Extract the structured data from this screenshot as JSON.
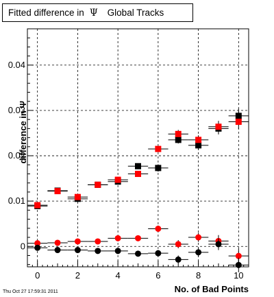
{
  "title": {
    "prefix": "Fitted difference in",
    "symbol": "Ψ",
    "suffix": "Global Tracks"
  },
  "timestamp": "Thu Oct 27 17:59:31 2011",
  "colors": {
    "black_series": "#000000",
    "red_series": "#ff0000",
    "grid": "#000000"
  },
  "chart_data": {
    "type": "scatter",
    "title": "Fitted difference in Ψ Global Tracks",
    "xlabel": "No. of Bad Points",
    "ylabel": "difference in Ψ",
    "xlim": [
      -0.5,
      10.5
    ],
    "ylim": [
      -0.0045,
      0.048
    ],
    "x_ticks": [
      0,
      2,
      4,
      6,
      8,
      10
    ],
    "x_tick_labels": [
      "0",
      "2",
      "4",
      "6",
      "8",
      "10"
    ],
    "y_ticks": [
      0,
      0.01,
      0.02,
      0.03,
      0.04
    ],
    "y_tick_labels": [
      "0",
      "0.01",
      "0.02",
      "0.03",
      "0.04"
    ],
    "grid": true,
    "x_error": 0.5,
    "series": [
      {
        "marker": "square",
        "color": "#000000",
        "x": [
          0,
          1,
          2,
          3,
          4,
          5,
          6,
          7,
          8,
          9,
          10
        ],
        "y": [
          0.0089,
          0.0123,
          0.0105,
          0.0136,
          0.0143,
          0.0177,
          0.0173,
          0.0235,
          0.0223,
          0.026,
          0.0288
        ],
        "yerr": [
          0.0003,
          0.0003,
          0.0004,
          0.0004,
          0.0005,
          0.0006,
          0.0008,
          0.0008,
          0.001,
          0.0013,
          0.0016
        ]
      },
      {
        "marker": "square",
        "color": "#ff0000",
        "x": [
          0,
          1,
          2,
          3,
          4,
          5,
          6,
          7,
          8,
          9,
          10
        ],
        "y": [
          0.0091,
          0.0122,
          0.0109,
          0.0136,
          0.0147,
          0.016,
          0.0215,
          0.0248,
          0.0235,
          0.0264,
          0.0275
        ],
        "yerr": [
          0.0003,
          0.0003,
          0.0004,
          0.0004,
          0.0005,
          0.0006,
          0.0007,
          0.0009,
          0.001,
          0.0013,
          0.0016
        ]
      },
      {
        "marker": "circle",
        "color": "#ff0000",
        "x": [
          0,
          1,
          2,
          3,
          4,
          5,
          6,
          7,
          8,
          9,
          10
        ],
        "y": [
          0.0007,
          0.0008,
          0.0011,
          0.0011,
          0.0018,
          0.0018,
          0.0039,
          0.0005,
          0.002,
          0.0012,
          -0.0021
        ],
        "yerr": [
          0.0003,
          0.0003,
          0.0004,
          0.0004,
          0.0005,
          0.0006,
          0.0007,
          0.0009,
          0.001,
          0.0013,
          0.0016
        ]
      },
      {
        "marker": "circle",
        "color": "#000000",
        "x": [
          0,
          1,
          2,
          3,
          4,
          5,
          6,
          7,
          8,
          9,
          10
        ],
        "y": [
          -0.0003,
          -0.0008,
          -0.0008,
          -0.001,
          -0.001,
          -0.0016,
          -0.0015,
          -0.0029,
          -0.0013,
          0.0005,
          -0.0041
        ],
        "yerr": [
          0.0003,
          0.0003,
          0.0004,
          0.0004,
          0.0005,
          0.0006,
          0.0007,
          0.0009,
          0.001,
          0.0013,
          0.0016
        ]
      }
    ]
  }
}
